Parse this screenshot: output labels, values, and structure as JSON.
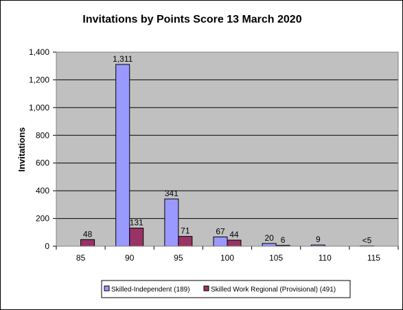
{
  "chart_data": {
    "type": "bar",
    "title": "Invitations by Points Score 13 March 2020",
    "xlabel": "",
    "ylabel": "Invitations",
    "categories": [
      "85",
      "90",
      "95",
      "100",
      "105",
      "110",
      "115"
    ],
    "ylim": [
      0,
      1400
    ],
    "yticks": [
      0,
      200,
      400,
      600,
      800,
      1000,
      1200,
      1400
    ],
    "ytick_labels": [
      "0",
      "200",
      "400",
      "600",
      "800",
      "1,000",
      "1,200",
      "1,400"
    ],
    "grid": true,
    "legend_position": "bottom",
    "plot_background": "#c0c0c0",
    "series": [
      {
        "name": "Skilled-Independent (189)",
        "color": "#9999ff",
        "values": [
          0,
          1311,
          341,
          67,
          20,
          9,
          2
        ],
        "labels": [
          "",
          "1,311",
          "341",
          "67",
          "20",
          "9",
          "<5"
        ]
      },
      {
        "name": "Skilled Work Regional (Provisional) (491)",
        "color": "#993366",
        "values": [
          48,
          131,
          71,
          44,
          6,
          0,
          0
        ],
        "labels": [
          "48",
          "131",
          "71",
          "44",
          "6",
          "",
          ""
        ]
      }
    ]
  }
}
